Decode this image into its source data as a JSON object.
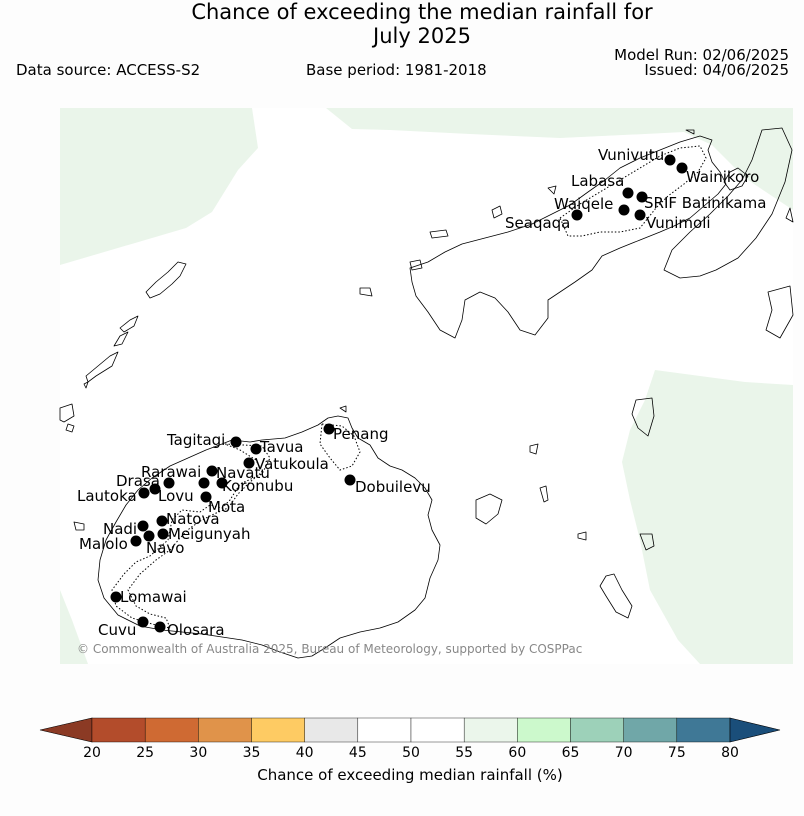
{
  "title_line1": "Chance of exceeding the median rainfall for",
  "title_line2": "July 2025",
  "data_source": "Data source: ACCESS-S2",
  "base_period": "Base period: 1981-2018",
  "model_run": "Model Run: 02/06/2025",
  "issued": "Issued: 04/06/2025",
  "copyright": "© Commonwealth of Australia 2025, Bureau of Meteorology, supported by COSPPac",
  "colorbar": {
    "label": "Chance of exceeding median rainfall (%)",
    "ticks": [
      "20",
      "25",
      "30",
      "35",
      "40",
      "45",
      "50",
      "55",
      "60",
      "65",
      "70",
      "75",
      "80"
    ],
    "colors": [
      "#b34c2b",
      "#cf6a33",
      "#e0934a",
      "#fecb63",
      "#e8e8e8",
      "#ffffff",
      "#ffffff",
      "#ebf6eb",
      "#ccf9cc",
      "#9dd1b9",
      "#70a7a8",
      "#3f7896"
    ],
    "under_color": "#8b3a24",
    "over_color": "#1a4e7a"
  },
  "stations": [
    {
      "name": "Vunivutu"
    },
    {
      "name": "Wainikoro"
    },
    {
      "name": "Labasa"
    },
    {
      "name": "Waiqele"
    },
    {
      "name": "SRIF Batinikama"
    },
    {
      "name": "Seaqaqa"
    },
    {
      "name": "Vunimoli"
    },
    {
      "name": "Tagitagi"
    },
    {
      "name": "Tavua"
    },
    {
      "name": "Penang"
    },
    {
      "name": "Vatukoula"
    },
    {
      "name": "Rarawai"
    },
    {
      "name": "Navatu"
    },
    {
      "name": "Drasa"
    },
    {
      "name": "Koronubu"
    },
    {
      "name": "Lautoka"
    },
    {
      "name": "Lovu"
    },
    {
      "name": "Dobuilevu"
    },
    {
      "name": "Mota"
    },
    {
      "name": "Natova"
    },
    {
      "name": "Nadi"
    },
    {
      "name": "Meigunyah"
    },
    {
      "name": "Malolo"
    },
    {
      "name": "Navo"
    },
    {
      "name": "Lomawai"
    },
    {
      "name": "Cuvu"
    },
    {
      "name": "Olosara"
    }
  ]
}
